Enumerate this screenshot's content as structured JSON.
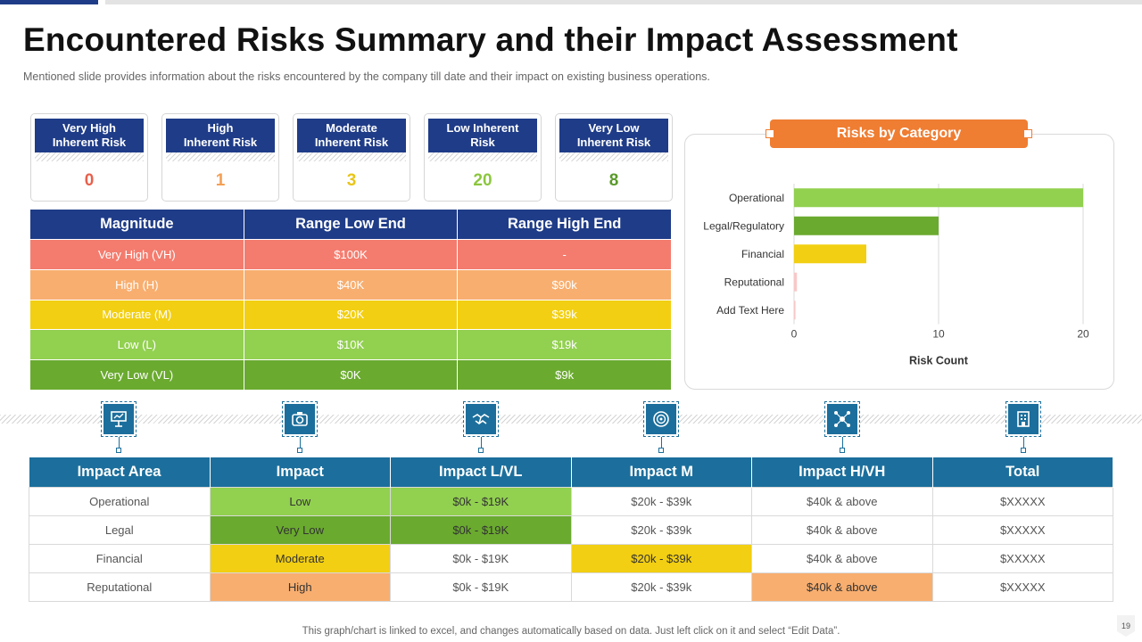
{
  "title": "Encountered Risks Summary and their Impact Assessment",
  "subtitle": "Mentioned slide provides  information  about the risks encountered  by the company till date and their impact on existing business operations.",
  "risk_cards": [
    {
      "label": "Very High\nInherent Risk",
      "value": "0",
      "color": "#e8604c"
    },
    {
      "label": "High\nInherent Risk",
      "value": "1",
      "color": "#f59f54"
    },
    {
      "label": "Moderate\nInherent Risk",
      "value": "3",
      "color": "#e8c51a"
    },
    {
      "label": "Low Inherent\nRisk",
      "value": "20",
      "color": "#8cc63f"
    },
    {
      "label": "Very Low\nInherent Risk",
      "value": "8",
      "color": "#5b9a2c"
    }
  ],
  "magnitude_table": {
    "headers": [
      "Magnitude",
      "Range Low End",
      "Range High End"
    ],
    "rows": [
      {
        "cells": [
          "Very High (VH)",
          "$100K",
          "-"
        ],
        "color": "#f47c6e"
      },
      {
        "cells": [
          "High (H)",
          "$40K",
          "$90k"
        ],
        "color": "#f8ae6f"
      },
      {
        "cells": [
          "Moderate  (M)",
          "$20K",
          "$39k"
        ],
        "color": "#f2cf12"
      },
      {
        "cells": [
          "Low (L)",
          "$10K",
          "$19k"
        ],
        "color": "#92d050"
      },
      {
        "cells": [
          "Very Low (VL)",
          "$0K",
          "$9k"
        ],
        "color": "#6aaa2f"
      }
    ]
  },
  "chart_data": {
    "type": "bar",
    "orientation": "horizontal",
    "title": "Risks by Category",
    "categories": [
      "Operational",
      "Legal/Regulatory",
      "Financial",
      "Reputational",
      "Add Text Here"
    ],
    "values": [
      20,
      10,
      5,
      0.2,
      0.1
    ],
    "bar_colors": [
      "#92d050",
      "#6aaa2f",
      "#f2cf12",
      "#f8c8c8",
      "#f8c8c8"
    ],
    "xlabel": "Risk Count",
    "ylabel": "",
    "xlim": [
      0,
      20
    ],
    "xticks": [
      "0",
      "10",
      "20"
    ],
    "grid": true
  },
  "icons": [
    "presentation-icon",
    "camera-icon",
    "handshake-icon",
    "target-icon",
    "network-icon",
    "building-icon"
  ],
  "impact_table": {
    "headers": [
      "Impact Area",
      "Impact",
      "Impact L/VL",
      "Impact M",
      "Impact H/VH",
      "Total"
    ],
    "rows": [
      {
        "cells": [
          "Operational",
          "Low",
          "$0k - $19K",
          "$20k - $39k",
          "$40k & above",
          "$XXXXX"
        ],
        "colors": [
          "",
          "#92d050",
          "#92d050",
          "",
          "",
          ""
        ]
      },
      {
        "cells": [
          "Legal",
          "Very Low",
          "$0k - $19K",
          "$20k - $39k",
          "$40k & above",
          "$XXXXX"
        ],
        "colors": [
          "",
          "#6aaa2f",
          "#6aaa2f",
          "",
          "",
          ""
        ]
      },
      {
        "cells": [
          "Financial",
          "Moderate",
          "$0k - $19K",
          "$20k - $39k",
          "$40k & above",
          "$XXXXX"
        ],
        "colors": [
          "",
          "#f2cf12",
          "",
          "#f2cf12",
          "",
          ""
        ]
      },
      {
        "cells": [
          "Reputational",
          "High",
          "$0k - $19K",
          "$20k - $39k",
          "$40k & above",
          "$XXXXX"
        ],
        "colors": [
          "",
          "#f8ae6f",
          "",
          "",
          "#f8ae6f",
          ""
        ]
      }
    ]
  },
  "footer": "This graph/chart is linked to excel,  and changes automatically based on data. Just left click on it and select “Edit Data”.",
  "page_number": "19"
}
